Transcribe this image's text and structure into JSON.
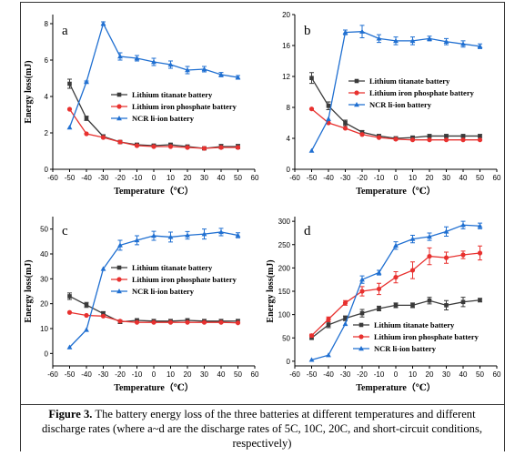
{
  "chart_data": [
    {
      "panel": "a",
      "type": "line",
      "xlabel": "Temperature（℃）",
      "ylabel": "Energy loss(mJ)",
      "xlim": [
        -60,
        60
      ],
      "ylim": [
        0,
        8.5
      ],
      "xticks": [
        -60,
        -50,
        -40,
        -30,
        -20,
        -10,
        0,
        10,
        20,
        30,
        40,
        50,
        60
      ],
      "yticks": [
        0,
        2,
        4,
        6,
        8
      ],
      "legend_position": "center-right",
      "x": [
        -50,
        -40,
        -30,
        -20,
        -10,
        0,
        10,
        20,
        30,
        40,
        50
      ],
      "series": [
        {
          "name": "Lithium titanate battery",
          "color": "#3a3a3a",
          "marker": "square",
          "values": [
            4.7,
            2.8,
            1.8,
            1.5,
            1.35,
            1.3,
            1.35,
            1.25,
            1.15,
            1.25,
            1.25
          ],
          "errors": [
            0.25,
            0.12,
            0.1,
            0.08,
            0.08,
            0.08,
            0.08,
            0.08,
            0.08,
            0.12,
            0.12
          ]
        },
        {
          "name": "Lithium iron phosphate battery",
          "color": "#e8312f",
          "marker": "circle",
          "values": [
            3.3,
            1.95,
            1.75,
            1.5,
            1.3,
            1.25,
            1.25,
            1.2,
            1.15,
            1.2,
            1.2
          ],
          "errors": [
            0,
            0,
            0,
            0,
            0,
            0,
            0,
            0,
            0,
            0,
            0
          ]
        },
        {
          "name": "NCR li-ion battery",
          "color": "#1f6fd1",
          "marker": "triangle",
          "values": [
            2.3,
            4.8,
            8.0,
            6.2,
            6.1,
            5.9,
            5.75,
            5.45,
            5.5,
            5.2,
            5.05
          ],
          "errors": [
            0,
            0.05,
            0.1,
            0.2,
            0.15,
            0.2,
            0.2,
            0.2,
            0.15,
            0.12,
            0.1
          ]
        }
      ]
    },
    {
      "panel": "b",
      "type": "line",
      "xlabel": "Temperature（℃）",
      "ylabel": "",
      "xlim": [
        -60,
        60
      ],
      "ylim": [
        0,
        20
      ],
      "xticks": [
        -60,
        -50,
        -40,
        -30,
        -20,
        -10,
        0,
        10,
        20,
        30,
        40,
        50,
        60
      ],
      "yticks": [
        0,
        4,
        8,
        12,
        16,
        20
      ],
      "legend_position": "center-right",
      "x": [
        -50,
        -40,
        -30,
        -20,
        -10,
        0,
        10,
        20,
        30,
        40,
        50
      ],
      "series": [
        {
          "name": "Lithium titanate battery",
          "color": "#3a3a3a",
          "marker": "square",
          "values": [
            11.8,
            8.2,
            6.0,
            4.8,
            4.3,
            4.0,
            4.1,
            4.3,
            4.3,
            4.3,
            4.3
          ],
          "errors": [
            0.7,
            0.5,
            0.35,
            0.2,
            0.2,
            0.2,
            0.2,
            0.2,
            0.2,
            0.2,
            0.2
          ]
        },
        {
          "name": "Lithium iron phosphate battery",
          "color": "#e8312f",
          "marker": "circle",
          "values": [
            7.8,
            6.0,
            5.3,
            4.5,
            4.1,
            3.9,
            3.8,
            3.8,
            3.8,
            3.8,
            3.8
          ],
          "errors": [
            0,
            0,
            0,
            0,
            0,
            0,
            0,
            0,
            0,
            0,
            0
          ]
        },
        {
          "name": "NCR li-ion battery",
          "color": "#1f6fd1",
          "marker": "triangle",
          "values": [
            2.4,
            6.5,
            17.7,
            17.8,
            16.9,
            16.6,
            16.6,
            16.9,
            16.5,
            16.2,
            15.9
          ],
          "errors": [
            0,
            0,
            0.3,
            0.8,
            0.5,
            0.5,
            0.5,
            0.3,
            0.4,
            0.4,
            0.3
          ]
        }
      ]
    },
    {
      "panel": "c",
      "type": "line",
      "xlabel": "Temperature（℃）",
      "ylabel": "Energy loss(mJ)",
      "xlim": [
        -60,
        60
      ],
      "ylim": [
        -5,
        55
      ],
      "xticks": [
        -60,
        -50,
        -40,
        -30,
        -20,
        -10,
        0,
        10,
        20,
        30,
        40,
        50,
        60
      ],
      "yticks": [
        0,
        10,
        20,
        30,
        40,
        50
      ],
      "legend_position": "center-right",
      "x": [
        -50,
        -40,
        -30,
        -20,
        -10,
        0,
        10,
        20,
        30,
        40,
        50
      ],
      "series": [
        {
          "name": "Lithium titanate battery",
          "color": "#3a3a3a",
          "marker": "square",
          "values": [
            23.0,
            19.5,
            16.0,
            12.7,
            13.3,
            13.0,
            13.0,
            13.3,
            13.0,
            13.0,
            13.0
          ],
          "errors": [
            1.3,
            1.0,
            0.8,
            0.7,
            0.7,
            0.7,
            0.7,
            0.7,
            0.7,
            0.7,
            0.7
          ]
        },
        {
          "name": "Lithium iron phosphate battery",
          "color": "#e8312f",
          "marker": "circle",
          "values": [
            16.5,
            15.3,
            15.0,
            13.0,
            12.5,
            12.5,
            12.5,
            12.5,
            12.5,
            12.5,
            12.3
          ],
          "errors": [
            0,
            0,
            0,
            0,
            0,
            0,
            0,
            0,
            0,
            0,
            0
          ]
        },
        {
          "name": "NCR li-ion battery",
          "color": "#1f6fd1",
          "marker": "triangle",
          "values": [
            2.5,
            9.5,
            34.0,
            43.5,
            45.5,
            47.3,
            46.8,
            47.5,
            48.0,
            48.8,
            47.5
          ],
          "errors": [
            0,
            0,
            0,
            2.0,
            1.8,
            1.8,
            2.0,
            1.5,
            2.0,
            1.5,
            1.0
          ]
        }
      ]
    },
    {
      "panel": "d",
      "type": "line",
      "xlabel": "Temperature（℃）",
      "ylabel": "Energy loss(mJ)",
      "xlim": [
        -60,
        60
      ],
      "ylim": [
        -10,
        310
      ],
      "xticks": [
        -60,
        -50,
        -40,
        -30,
        -20,
        -10,
        0,
        10,
        20,
        30,
        40,
        50,
        60
      ],
      "yticks": [
        0,
        50,
        100,
        150,
        200,
        250,
        300
      ],
      "legend_position": "bottom-right",
      "x": [
        -50,
        -40,
        -30,
        -20,
        -10,
        0,
        10,
        20,
        30,
        40,
        50
      ],
      "series": [
        {
          "name": "Lithium titanate battery",
          "color": "#3a3a3a",
          "marker": "square",
          "values": [
            50,
            78,
            92,
            103,
            113,
            120,
            120,
            130,
            120,
            127,
            131
          ],
          "errors": [
            3,
            6,
            5,
            8,
            5,
            5,
            5,
            7,
            10,
            10,
            4
          ]
        },
        {
          "name": "Lithium iron phosphate battery",
          "color": "#e8312f",
          "marker": "circle",
          "values": [
            55,
            90,
            125,
            150,
            155,
            180,
            195,
            225,
            222,
            228,
            232
          ],
          "errors": [
            3,
            5,
            5,
            10,
            12,
            12,
            18,
            18,
            12,
            8,
            15
          ]
        },
        {
          "name": "NCR li-ion battery",
          "color": "#1f6fd1",
          "marker": "triangle",
          "values": [
            3,
            13,
            80,
            175,
            190,
            248,
            262,
            267,
            278,
            292,
            290
          ],
          "errors": [
            0,
            0,
            0,
            8,
            5,
            8,
            8,
            8,
            10,
            8,
            6
          ]
        }
      ]
    }
  ],
  "caption": {
    "label": "Figure 3.",
    "text": " The battery energy loss of the three batteries at different temperatures and different discharge rates (where a~d are the discharge rates of 5C, 10C, 20C, and short-circuit conditions, respectively)"
  }
}
